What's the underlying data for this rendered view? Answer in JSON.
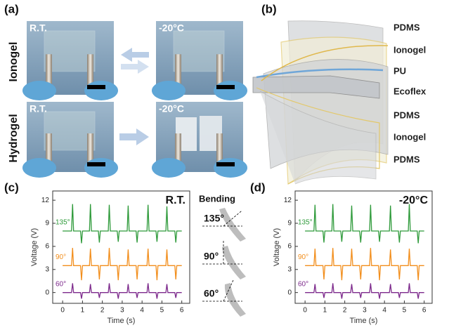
{
  "panel_a": {
    "label": "(a)",
    "rows": [
      "Ionogel",
      "Hydrogel"
    ],
    "photos": [
      "R.T.",
      "-20°C",
      "R.T.",
      "-20°C"
    ]
  },
  "panel_b": {
    "label": "(b)",
    "layers": [
      "PDMS",
      "Ionogel",
      "PU",
      "Ecoflex",
      "PDMS",
      "Ionogel",
      "PDMS"
    ]
  },
  "bending": {
    "title": "Bending",
    "angles": [
      "135°",
      "90°",
      "60°"
    ]
  },
  "chart_data": [
    {
      "type": "line",
      "panel_label": "(c)",
      "annotation": "R.T.",
      "xlabel": "Time (s)",
      "ylabel": "Voltage (V)",
      "xlim": [
        -0.5,
        6.4
      ],
      "ylim": [
        -1.4,
        13.2
      ],
      "xticks": [
        0,
        1,
        2,
        3,
        4,
        5,
        6
      ],
      "yticks": [
        0,
        3,
        6,
        9,
        12
      ],
      "x": [
        0,
        0.45,
        0.5,
        0.55,
        0.9,
        0.95,
        1.0,
        1.35,
        1.4,
        1.45,
        1.8,
        1.85,
        1.9,
        2.3,
        2.35,
        2.4,
        2.75,
        2.8,
        2.85,
        3.25,
        3.3,
        3.35,
        3.7,
        3.75,
        3.8,
        4.25,
        4.3,
        4.35,
        4.7,
        4.75,
        4.8,
        5.2,
        5.25,
        5.3,
        5.65,
        5.7,
        5.75,
        6
      ],
      "series": [
        {
          "name": "135°",
          "color": "#2e9a3a",
          "values": [
            8,
            8,
            11.5,
            8,
            8,
            6.4,
            8,
            8,
            11.5,
            8,
            8,
            6.5,
            8,
            8,
            11.4,
            8,
            8,
            6.6,
            8,
            8,
            11.3,
            8,
            8,
            6.5,
            8,
            8,
            11.4,
            8,
            8,
            6.6,
            8,
            8,
            11.2,
            8,
            8,
            6.5,
            8,
            8
          ]
        },
        {
          "name": "90°",
          "color": "#f28e1c",
          "values": [
            3.5,
            3.5,
            5.8,
            3.5,
            3.5,
            1.6,
            3.5,
            3.5,
            5.7,
            3.5,
            3.5,
            1.7,
            3.5,
            3.5,
            5.8,
            3.5,
            3.5,
            1.6,
            3.5,
            3.5,
            5.6,
            3.5,
            3.5,
            1.7,
            3.5,
            3.5,
            5.7,
            3.5,
            3.5,
            1.6,
            3.5,
            3.5,
            5.6,
            3.5,
            3.5,
            1.7,
            3.5,
            3.5
          ]
        },
        {
          "name": "60°",
          "color": "#7d2a8c",
          "values": [
            0,
            0,
            1.2,
            0,
            0,
            -0.8,
            0,
            0,
            1.1,
            0,
            0,
            -0.7,
            0,
            0,
            1.2,
            0,
            0,
            -0.8,
            0,
            0,
            1.1,
            0,
            0,
            -0.7,
            0,
            0,
            1.2,
            0,
            0,
            -0.8,
            0,
            0,
            1.1,
            0,
            0,
            -0.7,
            0,
            0
          ]
        }
      ]
    },
    {
      "type": "line",
      "panel_label": "(d)",
      "annotation": "-20°C",
      "xlabel": "Time (s)",
      "ylabel": "Voltage (V)",
      "xlim": [
        -0.5,
        6.4
      ],
      "ylim": [
        -1.4,
        13.2
      ],
      "xticks": [
        0,
        1,
        2,
        3,
        4,
        5,
        6
      ],
      "yticks": [
        0,
        3,
        6,
        9,
        12
      ],
      "x": [
        0,
        0.45,
        0.5,
        0.55,
        0.9,
        0.95,
        1.0,
        1.35,
        1.4,
        1.45,
        1.8,
        1.85,
        1.9,
        2.3,
        2.35,
        2.4,
        2.75,
        2.8,
        2.85,
        3.25,
        3.3,
        3.35,
        3.7,
        3.75,
        3.8,
        4.25,
        4.3,
        4.35,
        4.7,
        4.75,
        4.8,
        5.2,
        5.25,
        5.3,
        5.65,
        5.7,
        5.75,
        6
      ],
      "series": [
        {
          "name": "135°",
          "color": "#2e9a3a",
          "values": [
            8,
            8,
            11.4,
            8,
            8,
            6.5,
            8,
            8,
            11.5,
            8,
            8,
            6.6,
            8,
            8,
            11.3,
            8,
            8,
            6.5,
            8,
            8,
            11.4,
            8,
            8,
            6.6,
            8,
            8,
            11.3,
            8,
            8,
            6.5,
            8,
            8,
            11.5,
            8,
            8,
            6.4,
            8,
            8
          ]
        },
        {
          "name": "90°",
          "color": "#f28e1c",
          "values": [
            3.5,
            3.5,
            5.7,
            3.5,
            3.5,
            1.7,
            3.5,
            3.5,
            5.8,
            3.5,
            3.5,
            1.6,
            3.5,
            3.5,
            5.7,
            3.5,
            3.5,
            1.7,
            3.5,
            3.5,
            5.8,
            3.5,
            3.5,
            1.6,
            3.5,
            3.5,
            5.6,
            3.5,
            3.5,
            1.7,
            3.5,
            3.5,
            5.7,
            3.5,
            3.5,
            1.6,
            3.5,
            3.5
          ]
        },
        {
          "name": "60°",
          "color": "#7d2a8c",
          "values": [
            0,
            0,
            1.1,
            0,
            0,
            -0.7,
            0,
            0,
            1.2,
            0,
            0,
            -0.8,
            0,
            0,
            1.1,
            0,
            0,
            -0.7,
            0,
            0,
            1.2,
            0,
            0,
            -0.8,
            0,
            0,
            1.1,
            0,
            0,
            -0.7,
            0,
            0,
            1.2,
            0,
            0,
            -0.8,
            0,
            0
          ]
        }
      ]
    }
  ]
}
